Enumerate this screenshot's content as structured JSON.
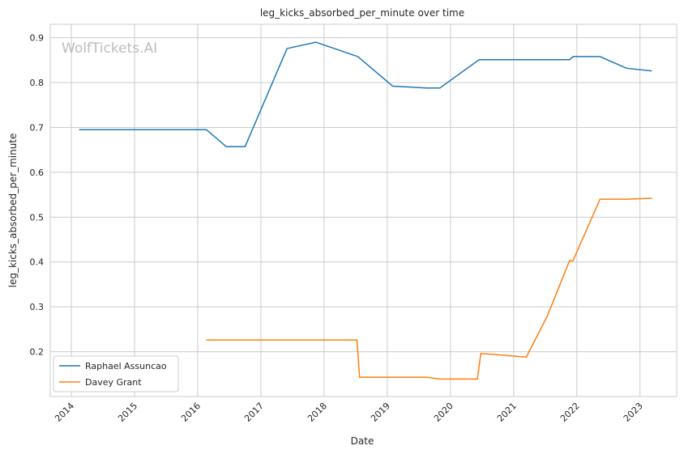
{
  "chart_data": {
    "type": "line",
    "title": "leg_kicks_absorbed_per_minute over time",
    "xlabel": "Date",
    "ylabel": "leg_kicks_absorbed_per_minute",
    "watermark": "WolfTickets.AI",
    "x_ticks": [
      "2014",
      "2015",
      "2016",
      "2017",
      "2018",
      "2019",
      "2020",
      "2021",
      "2022",
      "2023"
    ],
    "y_ticks": [
      "0.2",
      "0.3",
      "0.4",
      "0.5",
      "0.6",
      "0.7",
      "0.8",
      "0.9"
    ],
    "xlim": [
      "2013-09-01",
      "2023-08-01"
    ],
    "ylim": [
      0.1,
      0.93
    ],
    "grid": true,
    "legend_position": "lower-left",
    "series": [
      {
        "name": "Raphael Assuncao",
        "color": "#1f77b4",
        "points": [
          [
            "2014-02-15",
            0.695
          ],
          [
            "2016-02-20",
            0.695
          ],
          [
            "2016-06-15",
            0.657
          ],
          [
            "2016-10-01",
            0.657
          ],
          [
            "2017-06-01",
            0.876
          ],
          [
            "2017-11-15",
            0.89
          ],
          [
            "2018-07-15",
            0.858
          ],
          [
            "2019-02-01",
            0.792
          ],
          [
            "2019-08-15",
            0.788
          ],
          [
            "2019-11-01",
            0.788
          ],
          [
            "2020-06-15",
            0.851
          ],
          [
            "2021-11-20",
            0.851
          ],
          [
            "2021-12-10",
            0.858
          ],
          [
            "2022-05-15",
            0.858
          ],
          [
            "2022-10-15",
            0.832
          ],
          [
            "2023-03-10",
            0.826
          ]
        ]
      },
      {
        "name": "Davey Grant",
        "color": "#ff7f0e",
        "points": [
          [
            "2016-02-20",
            0.226
          ],
          [
            "2018-07-10",
            0.226
          ],
          [
            "2018-07-25",
            0.143
          ],
          [
            "2019-08-15",
            0.143
          ],
          [
            "2019-11-01",
            0.139
          ],
          [
            "2020-06-05",
            0.139
          ],
          [
            "2020-06-25",
            0.196
          ],
          [
            "2021-03-15",
            0.188
          ],
          [
            "2021-07-15",
            0.28
          ],
          [
            "2021-11-20",
            0.403
          ],
          [
            "2021-12-10",
            0.403
          ],
          [
            "2022-05-15",
            0.54
          ],
          [
            "2022-10-15",
            0.54
          ],
          [
            "2023-03-10",
            0.542
          ]
        ]
      }
    ]
  }
}
